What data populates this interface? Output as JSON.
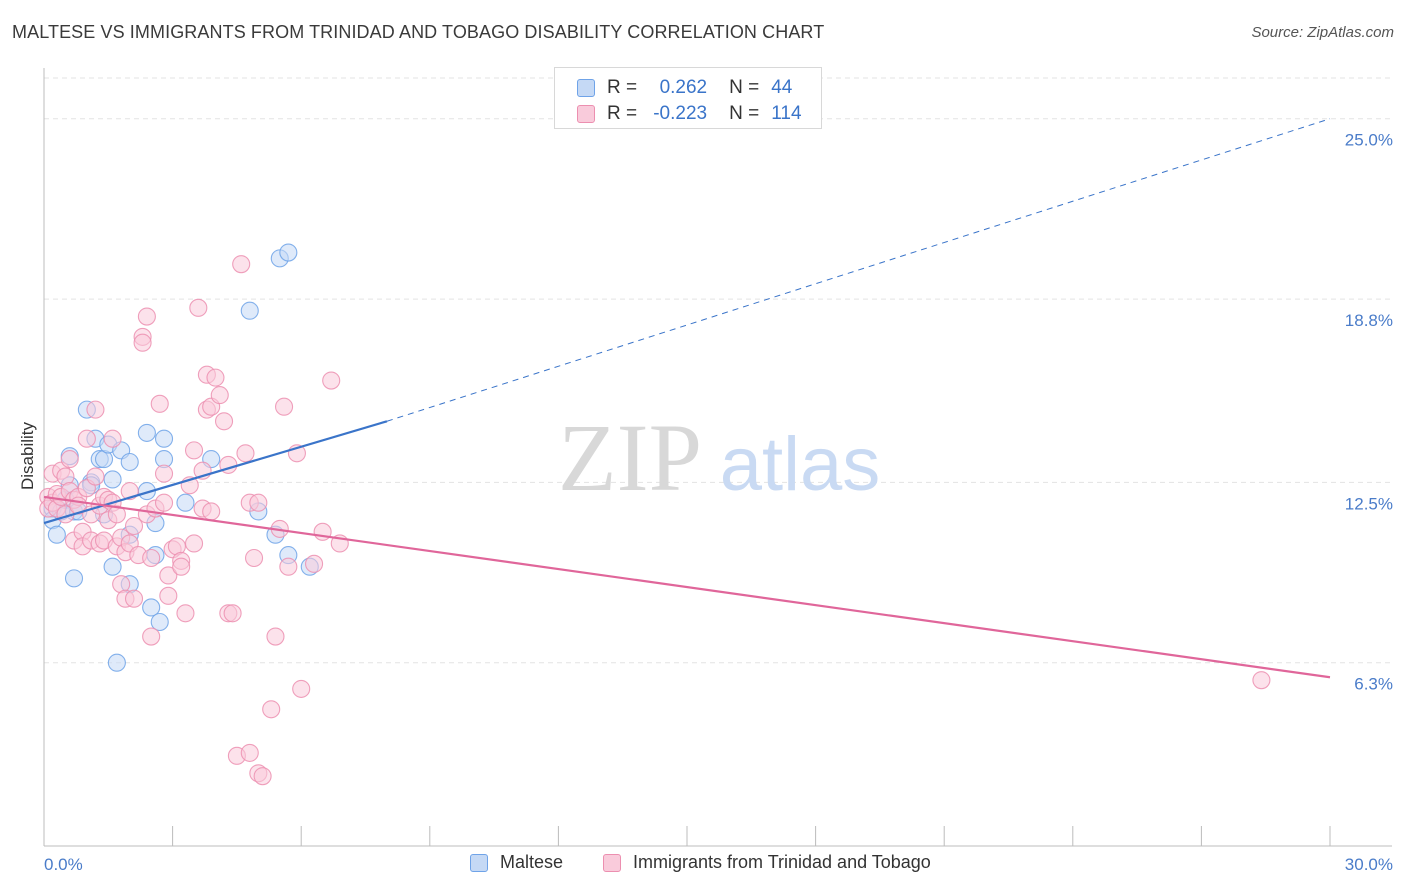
{
  "title": "MALTESE VS IMMIGRANTS FROM TRINIDAD AND TOBAGO DISABILITY CORRELATION CHART",
  "source": "Source: ZipAtlas.com",
  "watermark": {
    "zip": "ZIP",
    "atlas": "atlas"
  },
  "legend": {
    "r_label": "R =",
    "n_label": "N =",
    "series": [
      {
        "name": "Maltese",
        "r": "0.262",
        "n": "44",
        "color": "#6fa3e8",
        "fill": "#c5d9f5",
        "line": "#3a74c9"
      },
      {
        "name": "Immigrants from Trinidad and Tobago",
        "r": "-0.223",
        "n": "114",
        "color": "#ec8fb0",
        "fill": "#f9cbdb",
        "line": "#e0669a"
      }
    ]
  },
  "chart_data": {
    "type": "scatter",
    "xlabel": "",
    "ylabel": "Disability",
    "xlim": [
      0,
      30
    ],
    "ylim": [
      0,
      26.4
    ],
    "x_ticks_labels": [
      "0.0%",
      "30.0%"
    ],
    "y_ticks": [
      6.3,
      12.5,
      18.8,
      25.0
    ],
    "y_ticks_labels": [
      "6.3%",
      "12.5%",
      "18.8%",
      "25.0%"
    ],
    "grid": true,
    "legend_position": "top-center",
    "series": [
      {
        "name": "Maltese",
        "trend": {
          "x": [
            0,
            8.0
          ],
          "y": [
            11.1,
            14.6
          ],
          "dashed_to": [
            30,
            25.0
          ]
        },
        "points": [
          [
            0.2,
            11.6
          ],
          [
            0.2,
            11.2
          ],
          [
            0.3,
            10.7
          ],
          [
            0.4,
            11.5
          ],
          [
            0.5,
            11.9
          ],
          [
            0.6,
            12.4
          ],
          [
            0.6,
            13.4
          ],
          [
            0.7,
            11.5
          ],
          [
            0.7,
            9.2
          ],
          [
            0.8,
            11.5
          ],
          [
            1.0,
            15.0
          ],
          [
            1.1,
            12.5
          ],
          [
            1.1,
            12.4
          ],
          [
            1.2,
            14.0
          ],
          [
            1.3,
            13.3
          ],
          [
            1.4,
            11.4
          ],
          [
            1.4,
            13.3
          ],
          [
            1.5,
            13.8
          ],
          [
            1.6,
            12.6
          ],
          [
            1.6,
            9.6
          ],
          [
            1.7,
            6.3
          ],
          [
            1.8,
            13.6
          ],
          [
            2.0,
            13.2
          ],
          [
            2.0,
            10.7
          ],
          [
            2.0,
            9.0
          ],
          [
            2.4,
            14.2
          ],
          [
            2.4,
            12.2
          ],
          [
            2.5,
            8.2
          ],
          [
            2.6,
            11.1
          ],
          [
            2.6,
            10.0
          ],
          [
            2.7,
            7.7
          ],
          [
            2.8,
            14.0
          ],
          [
            2.8,
            13.3
          ],
          [
            3.3,
            11.8
          ],
          [
            3.9,
            13.3
          ],
          [
            4.8,
            18.4
          ],
          [
            5.0,
            11.5
          ],
          [
            5.4,
            10.7
          ],
          [
            5.5,
            20.2
          ],
          [
            5.7,
            10.0
          ],
          [
            5.7,
            20.4
          ],
          [
            6.2,
            9.6
          ]
        ]
      },
      {
        "name": "Immigrants from Trinidad and Tobago",
        "trend": {
          "x": [
            0,
            30
          ],
          "y": [
            12.0,
            5.8
          ]
        },
        "points": [
          [
            0.1,
            12.0
          ],
          [
            0.1,
            11.6
          ],
          [
            0.2,
            12.8
          ],
          [
            0.2,
            11.8
          ],
          [
            0.3,
            12.1
          ],
          [
            0.3,
            11.6
          ],
          [
            0.4,
            12.9
          ],
          [
            0.4,
            12.0
          ],
          [
            0.5,
            12.7
          ],
          [
            0.5,
            11.4
          ],
          [
            0.6,
            12.2
          ],
          [
            0.6,
            13.3
          ],
          [
            0.7,
            11.9
          ],
          [
            0.7,
            10.5
          ],
          [
            0.8,
            12.0
          ],
          [
            0.8,
            11.7
          ],
          [
            0.9,
            10.8
          ],
          [
            0.9,
            10.3
          ],
          [
            1.0,
            14.0
          ],
          [
            1.0,
            12.3
          ],
          [
            1.1,
            11.4
          ],
          [
            1.1,
            10.5
          ],
          [
            1.2,
            15.0
          ],
          [
            1.2,
            12.7
          ],
          [
            1.3,
            11.7
          ],
          [
            1.3,
            10.4
          ],
          [
            1.4,
            12.0
          ],
          [
            1.4,
            10.5
          ],
          [
            1.5,
            11.9
          ],
          [
            1.5,
            11.2
          ],
          [
            1.6,
            14.0
          ],
          [
            1.6,
            11.8
          ],
          [
            1.7,
            11.4
          ],
          [
            1.7,
            10.3
          ],
          [
            1.8,
            10.6
          ],
          [
            1.8,
            9.0
          ],
          [
            1.9,
            10.1
          ],
          [
            1.9,
            8.5
          ],
          [
            2.0,
            12.2
          ],
          [
            2.0,
            10.4
          ],
          [
            2.1,
            11.0
          ],
          [
            2.1,
            8.5
          ],
          [
            2.2,
            10.0
          ],
          [
            2.3,
            17.5
          ],
          [
            2.3,
            17.3
          ],
          [
            2.4,
            18.2
          ],
          [
            2.4,
            11.4
          ],
          [
            2.5,
            9.9
          ],
          [
            2.5,
            7.2
          ],
          [
            2.6,
            11.6
          ],
          [
            2.7,
            15.2
          ],
          [
            2.8,
            12.8
          ],
          [
            2.8,
            11.8
          ],
          [
            2.9,
            9.3
          ],
          [
            2.9,
            8.6
          ],
          [
            3.0,
            10.2
          ],
          [
            3.1,
            10.3
          ],
          [
            3.2,
            9.8
          ],
          [
            3.2,
            9.6
          ],
          [
            3.3,
            8.0
          ],
          [
            3.4,
            12.4
          ],
          [
            3.5,
            13.6
          ],
          [
            3.5,
            10.4
          ],
          [
            3.6,
            18.5
          ],
          [
            3.7,
            11.6
          ],
          [
            3.7,
            12.9
          ],
          [
            3.8,
            16.2
          ],
          [
            3.8,
            15.0
          ],
          [
            3.9,
            15.1
          ],
          [
            3.9,
            11.5
          ],
          [
            4.0,
            16.1
          ],
          [
            4.1,
            15.5
          ],
          [
            4.2,
            14.6
          ],
          [
            4.3,
            13.1
          ],
          [
            4.3,
            8.0
          ],
          [
            4.4,
            8.0
          ],
          [
            4.6,
            20.0
          ],
          [
            4.7,
            13.5
          ],
          [
            4.8,
            11.8
          ],
          [
            4.9,
            9.9
          ],
          [
            5.0,
            11.8
          ],
          [
            4.5,
            3.1
          ],
          [
            4.8,
            3.2
          ],
          [
            5.0,
            2.5
          ],
          [
            5.1,
            2.4
          ],
          [
            5.3,
            4.7
          ],
          [
            5.4,
            7.2
          ],
          [
            5.5,
            10.9
          ],
          [
            5.6,
            15.1
          ],
          [
            5.7,
            9.6
          ],
          [
            5.9,
            13.5
          ],
          [
            6.0,
            5.4
          ],
          [
            6.3,
            9.7
          ],
          [
            6.5,
            10.8
          ],
          [
            6.7,
            16.0
          ],
          [
            6.9,
            10.4
          ],
          [
            28.4,
            5.7
          ]
        ]
      }
    ]
  }
}
